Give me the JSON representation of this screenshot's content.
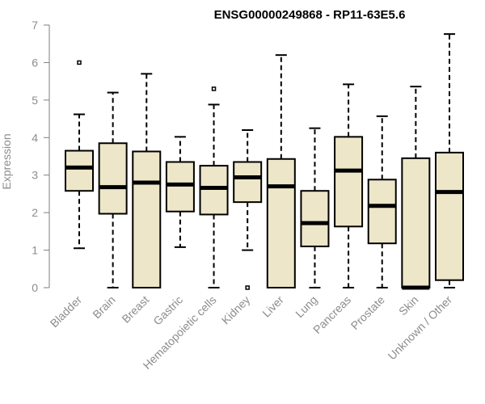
{
  "chart_data": {
    "type": "box",
    "title": "ENSG00000249868 - RP11-63E5.6",
    "xlabel": "",
    "ylabel": "Expression",
    "ylim": [
      0,
      7
    ],
    "yticks": [
      0,
      1,
      2,
      3,
      4,
      5,
      6,
      7
    ],
    "grid": false,
    "box_fill": "#ede6c8",
    "axis_color": "#7f7f7f",
    "categories": [
      "Bladder",
      "Brain",
      "Breast",
      "Gastric",
      "Hematopoietic cells",
      "Kidney",
      "Liver",
      "Lung",
      "Pancreas",
      "Prostate",
      "Skin",
      "Unknown / Other"
    ],
    "boxes": [
      {
        "min": 1.05,
        "q1": 2.58,
        "median": 3.2,
        "q3": 3.65,
        "max": 4.62,
        "outliers": [
          6.0
        ]
      },
      {
        "min": 0.0,
        "q1": 1.97,
        "median": 2.68,
        "q3": 3.85,
        "max": 5.2,
        "outliers": []
      },
      {
        "min": 0.0,
        "q1": 0.0,
        "median": 2.8,
        "q3": 3.63,
        "max": 5.7,
        "outliers": []
      },
      {
        "min": 1.08,
        "q1": 2.03,
        "median": 2.75,
        "q3": 3.35,
        "max": 4.02,
        "outliers": []
      },
      {
        "min": 0.0,
        "q1": 1.95,
        "median": 2.66,
        "q3": 3.25,
        "max": 4.88,
        "outliers": [
          5.3
        ]
      },
      {
        "min": 1.0,
        "q1": 2.28,
        "median": 2.94,
        "q3": 3.35,
        "max": 4.2,
        "outliers": [
          0.0
        ]
      },
      {
        "min": 0.0,
        "q1": 0.0,
        "median": 2.7,
        "q3": 3.43,
        "max": 6.2,
        "outliers": []
      },
      {
        "min": 0.0,
        "q1": 1.1,
        "median": 1.72,
        "q3": 2.58,
        "max": 4.25,
        "outliers": []
      },
      {
        "min": 0.0,
        "q1": 1.63,
        "median": 3.12,
        "q3": 4.02,
        "max": 5.42,
        "outliers": []
      },
      {
        "min": 0.0,
        "q1": 1.18,
        "median": 2.18,
        "q3": 2.88,
        "max": 4.57,
        "outliers": []
      },
      {
        "min": 0.0,
        "q1": 0.0,
        "median": 0.0,
        "q3": 3.45,
        "max": 5.36,
        "outliers": []
      },
      {
        "min": 0.0,
        "q1": 0.2,
        "median": 2.55,
        "q3": 3.6,
        "max": 6.76,
        "outliers": []
      }
    ]
  }
}
